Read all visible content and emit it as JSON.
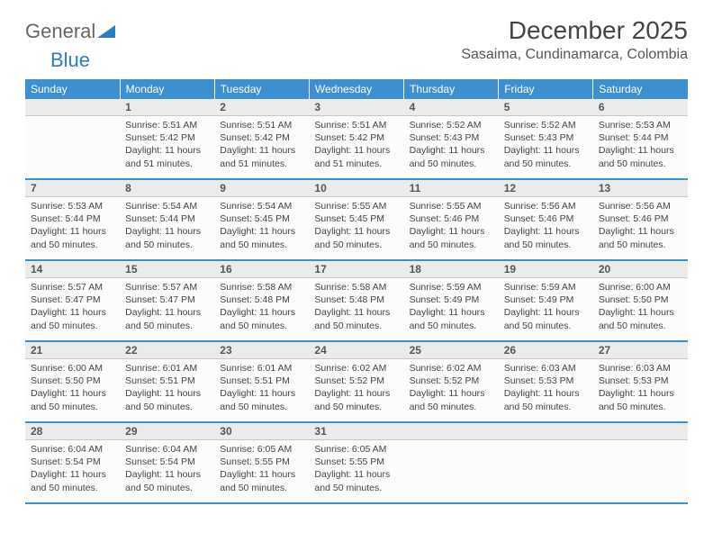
{
  "logo": {
    "text1": "General",
    "text2": "Blue"
  },
  "title": "December 2025",
  "location": "Sasaima, Cundinamarca, Colombia",
  "colors": {
    "header_bg": "#3d8fd1",
    "header_text": "#ffffff",
    "daynum_bg": "#ebebeb",
    "separator": "#3d8fd1",
    "text": "#444444",
    "page_bg": "#ffffff"
  },
  "fonts": {
    "title_pt": 28,
    "location_pt": 16,
    "dow_pt": 12,
    "body_pt": 10.5
  },
  "days_of_week": [
    "Sunday",
    "Monday",
    "Tuesday",
    "Wednesday",
    "Thursday",
    "Friday",
    "Saturday"
  ],
  "weeks": [
    [
      {
        "num": "",
        "lines": [
          "",
          "",
          "",
          ""
        ]
      },
      {
        "num": "1",
        "lines": [
          "Sunrise: 5:51 AM",
          "Sunset: 5:42 PM",
          "Daylight: 11 hours",
          "and 51 minutes."
        ]
      },
      {
        "num": "2",
        "lines": [
          "Sunrise: 5:51 AM",
          "Sunset: 5:42 PM",
          "Daylight: 11 hours",
          "and 51 minutes."
        ]
      },
      {
        "num": "3",
        "lines": [
          "Sunrise: 5:51 AM",
          "Sunset: 5:42 PM",
          "Daylight: 11 hours",
          "and 51 minutes."
        ]
      },
      {
        "num": "4",
        "lines": [
          "Sunrise: 5:52 AM",
          "Sunset: 5:43 PM",
          "Daylight: 11 hours",
          "and 50 minutes."
        ]
      },
      {
        "num": "5",
        "lines": [
          "Sunrise: 5:52 AM",
          "Sunset: 5:43 PM",
          "Daylight: 11 hours",
          "and 50 minutes."
        ]
      },
      {
        "num": "6",
        "lines": [
          "Sunrise: 5:53 AM",
          "Sunset: 5:44 PM",
          "Daylight: 11 hours",
          "and 50 minutes."
        ]
      }
    ],
    [
      {
        "num": "7",
        "lines": [
          "Sunrise: 5:53 AM",
          "Sunset: 5:44 PM",
          "Daylight: 11 hours",
          "and 50 minutes."
        ]
      },
      {
        "num": "8",
        "lines": [
          "Sunrise: 5:54 AM",
          "Sunset: 5:44 PM",
          "Daylight: 11 hours",
          "and 50 minutes."
        ]
      },
      {
        "num": "9",
        "lines": [
          "Sunrise: 5:54 AM",
          "Sunset: 5:45 PM",
          "Daylight: 11 hours",
          "and 50 minutes."
        ]
      },
      {
        "num": "10",
        "lines": [
          "Sunrise: 5:55 AM",
          "Sunset: 5:45 PM",
          "Daylight: 11 hours",
          "and 50 minutes."
        ]
      },
      {
        "num": "11",
        "lines": [
          "Sunrise: 5:55 AM",
          "Sunset: 5:46 PM",
          "Daylight: 11 hours",
          "and 50 minutes."
        ]
      },
      {
        "num": "12",
        "lines": [
          "Sunrise: 5:56 AM",
          "Sunset: 5:46 PM",
          "Daylight: 11 hours",
          "and 50 minutes."
        ]
      },
      {
        "num": "13",
        "lines": [
          "Sunrise: 5:56 AM",
          "Sunset: 5:46 PM",
          "Daylight: 11 hours",
          "and 50 minutes."
        ]
      }
    ],
    [
      {
        "num": "14",
        "lines": [
          "Sunrise: 5:57 AM",
          "Sunset: 5:47 PM",
          "Daylight: 11 hours",
          "and 50 minutes."
        ]
      },
      {
        "num": "15",
        "lines": [
          "Sunrise: 5:57 AM",
          "Sunset: 5:47 PM",
          "Daylight: 11 hours",
          "and 50 minutes."
        ]
      },
      {
        "num": "16",
        "lines": [
          "Sunrise: 5:58 AM",
          "Sunset: 5:48 PM",
          "Daylight: 11 hours",
          "and 50 minutes."
        ]
      },
      {
        "num": "17",
        "lines": [
          "Sunrise: 5:58 AM",
          "Sunset: 5:48 PM",
          "Daylight: 11 hours",
          "and 50 minutes."
        ]
      },
      {
        "num": "18",
        "lines": [
          "Sunrise: 5:59 AM",
          "Sunset: 5:49 PM",
          "Daylight: 11 hours",
          "and 50 minutes."
        ]
      },
      {
        "num": "19",
        "lines": [
          "Sunrise: 5:59 AM",
          "Sunset: 5:49 PM",
          "Daylight: 11 hours",
          "and 50 minutes."
        ]
      },
      {
        "num": "20",
        "lines": [
          "Sunrise: 6:00 AM",
          "Sunset: 5:50 PM",
          "Daylight: 11 hours",
          "and 50 minutes."
        ]
      }
    ],
    [
      {
        "num": "21",
        "lines": [
          "Sunrise: 6:00 AM",
          "Sunset: 5:50 PM",
          "Daylight: 11 hours",
          "and 50 minutes."
        ]
      },
      {
        "num": "22",
        "lines": [
          "Sunrise: 6:01 AM",
          "Sunset: 5:51 PM",
          "Daylight: 11 hours",
          "and 50 minutes."
        ]
      },
      {
        "num": "23",
        "lines": [
          "Sunrise: 6:01 AM",
          "Sunset: 5:51 PM",
          "Daylight: 11 hours",
          "and 50 minutes."
        ]
      },
      {
        "num": "24",
        "lines": [
          "Sunrise: 6:02 AM",
          "Sunset: 5:52 PM",
          "Daylight: 11 hours",
          "and 50 minutes."
        ]
      },
      {
        "num": "25",
        "lines": [
          "Sunrise: 6:02 AM",
          "Sunset: 5:52 PM",
          "Daylight: 11 hours",
          "and 50 minutes."
        ]
      },
      {
        "num": "26",
        "lines": [
          "Sunrise: 6:03 AM",
          "Sunset: 5:53 PM",
          "Daylight: 11 hours",
          "and 50 minutes."
        ]
      },
      {
        "num": "27",
        "lines": [
          "Sunrise: 6:03 AM",
          "Sunset: 5:53 PM",
          "Daylight: 11 hours",
          "and 50 minutes."
        ]
      }
    ],
    [
      {
        "num": "28",
        "lines": [
          "Sunrise: 6:04 AM",
          "Sunset: 5:54 PM",
          "Daylight: 11 hours",
          "and 50 minutes."
        ]
      },
      {
        "num": "29",
        "lines": [
          "Sunrise: 6:04 AM",
          "Sunset: 5:54 PM",
          "Daylight: 11 hours",
          "and 50 minutes."
        ]
      },
      {
        "num": "30",
        "lines": [
          "Sunrise: 6:05 AM",
          "Sunset: 5:55 PM",
          "Daylight: 11 hours",
          "and 50 minutes."
        ]
      },
      {
        "num": "31",
        "lines": [
          "Sunrise: 6:05 AM",
          "Sunset: 5:55 PM",
          "Daylight: 11 hours",
          "and 50 minutes."
        ]
      },
      {
        "num": "",
        "lines": [
          "",
          "",
          "",
          ""
        ]
      },
      {
        "num": "",
        "lines": [
          "",
          "",
          "",
          ""
        ]
      },
      {
        "num": "",
        "lines": [
          "",
          "",
          "",
          ""
        ]
      }
    ]
  ]
}
